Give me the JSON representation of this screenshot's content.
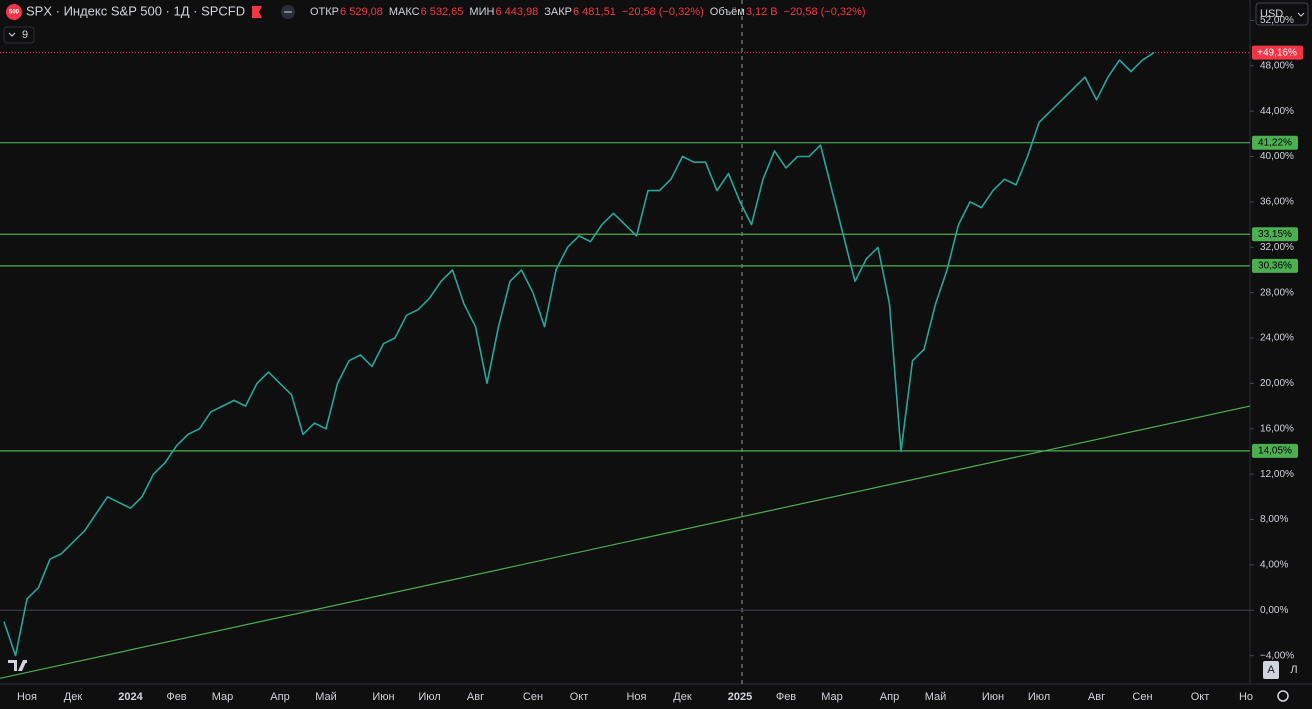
{
  "header": {
    "logo": "500",
    "symbol": "SPX · Индекс S&P 500 · 1Д · SPCFD",
    "open_label": "ОТКР",
    "open": "6 529,08",
    "high_label": "МАКС",
    "high": "6 532,65",
    "low_label": "МИН",
    "low": "6 443,98",
    "close_label": "ЗАКР",
    "close": "6 481,51",
    "change": "−20,58 (−0,32%)",
    "volume_label": "Объём",
    "volume": "3,12 B",
    "volume_change": "−20,58 (−0,32%)",
    "indicators": "9",
    "currency": "USD",
    "auto_button": "A",
    "log_button": "Л"
  },
  "chart_data": {
    "type": "line",
    "color": "#26a69a",
    "categories": [
      null,
      null,
      "Ноя",
      null,
      null,
      null,
      "Дек",
      null,
      null,
      null,
      null,
      "2024",
      null,
      null,
      null,
      "Фев",
      null,
      null,
      null,
      "Мар",
      null,
      null,
      null,
      null,
      "Апр",
      null,
      null,
      null,
      "Май",
      null,
      null,
      null,
      null,
      "Июн",
      null,
      null,
      null,
      "Июл",
      null,
      null,
      null,
      "Авг",
      null,
      null,
      null,
      null,
      "Сен",
      null,
      null,
      null,
      "Окт",
      null,
      null,
      null,
      null,
      "Ноя",
      null,
      null,
      null,
      "Дек",
      null,
      null,
      null,
      null,
      "2025",
      null,
      null,
      null,
      "Фев",
      null,
      null,
      null,
      "Мар",
      null,
      null,
      null,
      null,
      "Апр",
      null,
      null,
      null,
      "Май",
      null,
      null,
      null,
      null,
      "Июн",
      null,
      null,
      null,
      "Июл",
      null,
      null,
      null,
      null,
      "Авг",
      null,
      null,
      null,
      "Сен",
      null,
      null,
      null,
      null,
      "Окт",
      null,
      null,
      null,
      "Но"
    ],
    "values": [
      -1,
      -4,
      1,
      2,
      4.5,
      5,
      6,
      7,
      8.5,
      10,
      9.5,
      9,
      10,
      12,
      13,
      14.5,
      15.5,
      16,
      17.5,
      18,
      18.5,
      18,
      20,
      21,
      20,
      19,
      15.5,
      16.5,
      16,
      20,
      22,
      22.5,
      21.5,
      23.5,
      24,
      26,
      26.5,
      27.5,
      29,
      30,
      27,
      25,
      20,
      25,
      29,
      30,
      28,
      25,
      30,
      32,
      33,
      32.5,
      34,
      35,
      34,
      33,
      37,
      37,
      38,
      40,
      39.5,
      39.5,
      37,
      38.5,
      36,
      34,
      38,
      40.5,
      39,
      40,
      40,
      41,
      37,
      33,
      29,
      31,
      32,
      27,
      14,
      22,
      23,
      27,
      30,
      34,
      36,
      35.5,
      37,
      38,
      37.5,
      40,
      43,
      44,
      45,
      46,
      47,
      45,
      47,
      48.5,
      47.5,
      48.5,
      49.16,
      null,
      null,
      null,
      null,
      null,
      null,
      null,
      null
    ],
    "ylim": [
      -6.5,
      53.8
    ],
    "yticks": [
      {
        "value": 52,
        "label": "52,00%"
      },
      {
        "value": 48,
        "label": "48,00%"
      },
      {
        "value": 44,
        "label": "44,00%"
      },
      {
        "value": 40,
        "label": "40,00%"
      },
      {
        "value": 36,
        "label": "36,00%"
      },
      {
        "value": 32,
        "label": "32,00%"
      },
      {
        "value": 28,
        "label": "28,00%"
      },
      {
        "value": 24,
        "label": "24,00%"
      },
      {
        "value": 20,
        "label": "20,00%"
      },
      {
        "value": 16,
        "label": "16,00%"
      },
      {
        "value": 12,
        "label": "12,00%"
      },
      {
        "value": 8,
        "label": "8,00%"
      },
      {
        "value": 4,
        "label": "4,00%"
      },
      {
        "value": 0,
        "label": "0,00%"
      },
      {
        "value": -4,
        "label": "−4,00%"
      }
    ],
    "levels": [
      {
        "value": 41.22,
        "label": "41,22%"
      },
      {
        "value": 33.15,
        "label": "33,15%"
      },
      {
        "value": 30.36,
        "label": "30,36%"
      },
      {
        "value": 14.05,
        "label": "14,05%"
      }
    ],
    "level_color": "#4caf50",
    "last_value": {
      "value": 49.16,
      "label": "+49,16%"
    },
    "last_color": "#f23645",
    "trend_line": [
      -6,
      18
    ]
  }
}
